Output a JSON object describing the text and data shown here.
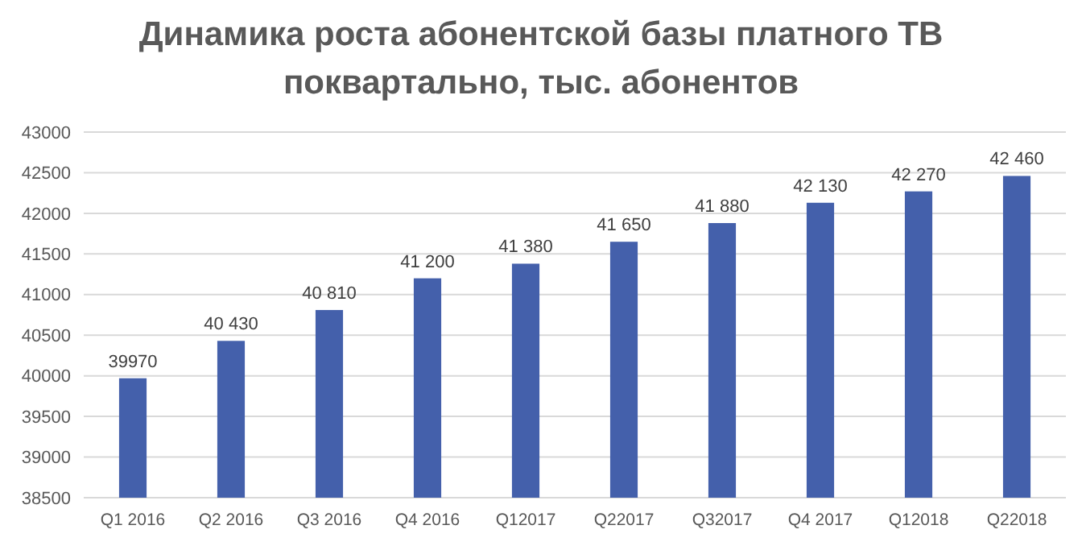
{
  "chart_data": {
    "type": "bar",
    "title": "Динамика роста абонентской базы платного ТВ\nпоквартально, тыс. абонентов",
    "categories": [
      "Q1 2016",
      "Q2 2016",
      "Q3 2016",
      "Q4 2016",
      "Q12017",
      "Q22017",
      "Q32017",
      "Q4 2017",
      "Q12018",
      "Q22018"
    ],
    "values": [
      39970,
      40430,
      40810,
      41200,
      41380,
      41650,
      41880,
      42130,
      42270,
      42460
    ],
    "value_labels": [
      "39970",
      "40 430",
      "40 810",
      "41 200",
      "41 380",
      "41 650",
      "41 880",
      "42 130",
      "42 270",
      "42 460"
    ],
    "color": "#4460ab",
    "ylim": [
      38500,
      43000
    ],
    "yticks": [
      38500,
      39000,
      39500,
      40000,
      40500,
      41000,
      41500,
      42000,
      42500,
      43000
    ],
    "grid": "y"
  }
}
